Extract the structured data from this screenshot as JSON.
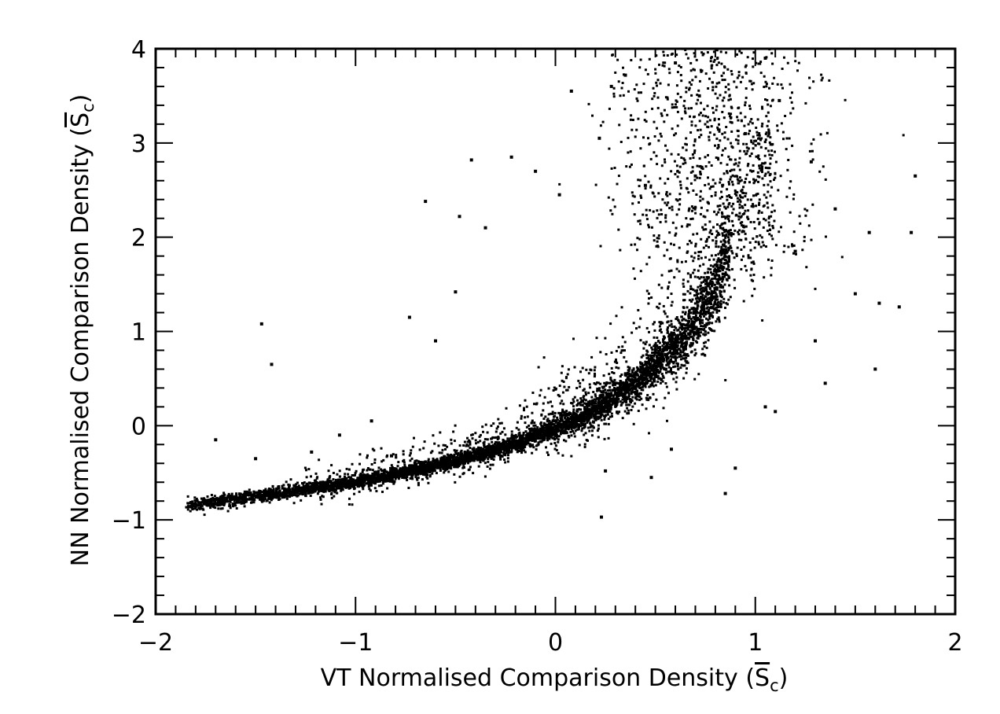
{
  "chart_data": {
    "type": "scatter",
    "title": "",
    "xlabel": "VT Normalised Comparison Density (S̅c)",
    "ylabel": "NN Normalised Comparison Density (S̅c)",
    "xlabel_main": "VT Normalised Comparison Density ",
    "ylabel_main": "NN Normalised Comparison Density ",
    "symbol_letter": "S",
    "symbol_subscript": "c",
    "xlim": [
      -2,
      2
    ],
    "ylim": [
      -2,
      4
    ],
    "x_ticks": [
      -2,
      -1,
      0,
      1,
      2
    ],
    "x_tick_labels": [
      "−2",
      "−1",
      "0",
      "1",
      "2"
    ],
    "y_ticks": [
      -2,
      -1,
      0,
      1,
      2,
      3,
      4
    ],
    "y_tick_labels": [
      "−2",
      "−1",
      "0",
      "1",
      "2",
      "3",
      "4"
    ],
    "x_minor_step": 0.1,
    "y_minor_step": 0.2,
    "grid": false,
    "legend": "none",
    "marker_color": "#000000",
    "series": [
      {
        "trend_x": [
          -1.85,
          -1.6,
          -1.4,
          -1.2,
          -1.0,
          -0.8,
          -0.6,
          -0.4,
          -0.2,
          0.0,
          0.2,
          0.4,
          0.6,
          0.7,
          0.8,
          0.85
        ],
        "trend_y": [
          -0.85,
          -0.78,
          -0.72,
          -0.66,
          -0.6,
          -0.52,
          -0.43,
          -0.32,
          -0.19,
          -0.03,
          0.17,
          0.45,
          0.85,
          1.1,
          1.45,
          1.75
        ],
        "sample_points": [
          [
            -1.83,
            -0.86
          ],
          [
            -1.7,
            -0.15
          ],
          [
            -1.5,
            -0.35
          ],
          [
            -1.47,
            1.08
          ],
          [
            -1.42,
            0.65
          ],
          [
            -1.22,
            -0.28
          ],
          [
            -1.08,
            -0.1
          ],
          [
            -0.92,
            0.05
          ],
          [
            -0.82,
            -0.32
          ],
          [
            -0.73,
            1.15
          ],
          [
            -0.65,
            2.38
          ],
          [
            -0.6,
            0.9
          ],
          [
            -0.5,
            1.42
          ],
          [
            -0.48,
            2.22
          ],
          [
            -0.42,
            2.82
          ],
          [
            -0.35,
            2.1
          ],
          [
            -0.22,
            2.85
          ],
          [
            -0.1,
            2.7
          ],
          [
            0.02,
            2.45
          ],
          [
            0.08,
            3.55
          ],
          [
            0.22,
            3.05
          ],
          [
            0.28,
            3.6
          ],
          [
            0.35,
            3.72
          ],
          [
            0.6,
            3.85
          ],
          [
            0.72,
            3.5
          ],
          [
            0.95,
            3.1
          ],
          [
            1.05,
            3.9
          ],
          [
            1.12,
            3.45
          ],
          [
            1.28,
            2.8
          ],
          [
            1.4,
            2.3
          ],
          [
            1.5,
            1.4
          ],
          [
            1.57,
            2.05
          ],
          [
            1.62,
            1.3
          ],
          [
            1.72,
            1.26
          ],
          [
            1.78,
            2.05
          ],
          [
            1.8,
            2.65
          ],
          [
            1.6,
            0.6
          ],
          [
            1.3,
            0.9
          ],
          [
            1.05,
            0.2
          ],
          [
            0.85,
            -0.72
          ],
          [
            0.48,
            -0.55
          ],
          [
            0.23,
            -0.97
          ],
          [
            0.25,
            -0.48
          ],
          [
            1.1,
            0.15
          ],
          [
            1.35,
            0.45
          ],
          [
            0.58,
            -0.25
          ],
          [
            0.9,
            -0.45
          ],
          [
            1.2,
            1.85
          ],
          [
            0.7,
            2.65
          ],
          [
            0.45,
            2.55
          ]
        ]
      }
    ]
  }
}
